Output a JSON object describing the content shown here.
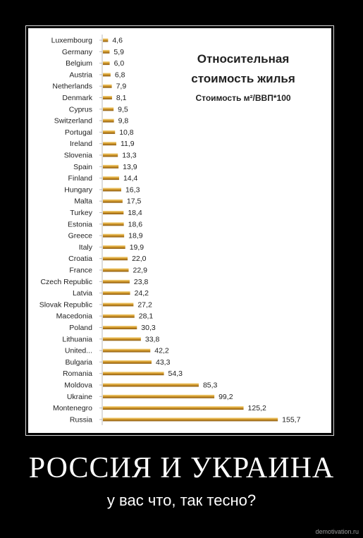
{
  "chart_data": {
    "type": "bar",
    "orientation": "horizontal",
    "title_line1": "Относительная",
    "title_line2": "стоимость жилья",
    "subtitle": "Стоимость м²/ВВП*100",
    "categories": [
      "Luxembourg",
      "Germany",
      "Belgium",
      "Austria",
      "Netherlands",
      "Denmark",
      "Cyprus",
      "Switzerland",
      "Portugal",
      "Ireland",
      "Slovenia",
      "Spain",
      "Finland",
      "Hungary",
      "Malta",
      "Turkey",
      "Estonia",
      "Greece",
      "Italy",
      "Croatia",
      "France",
      "Czech Republic",
      "Latvia",
      "Slovak Republic",
      "Macedonia",
      "Poland",
      "Lithuania",
      "United...",
      "Bulgaria",
      "Romania",
      "Moldova",
      "Ukraine",
      "Montenegro",
      "Russia"
    ],
    "values": [
      4.6,
      5.9,
      6.0,
      6.8,
      7.9,
      8.1,
      9.5,
      9.8,
      10.8,
      11.9,
      13.3,
      13.9,
      14.4,
      16.3,
      17.5,
      18.4,
      18.6,
      18.9,
      19.9,
      22.0,
      22.9,
      23.8,
      24.2,
      27.2,
      28.1,
      30.3,
      33.8,
      42.2,
      43.3,
      54.3,
      85.3,
      99.2,
      125.2,
      155.7
    ],
    "value_labels": [
      "4,6",
      "5,9",
      "6,0",
      "6,8",
      "7,9",
      "8,1",
      "9,5",
      "9,8",
      "10,8",
      "11,9",
      "13,3",
      "13,9",
      "14,4",
      "16,3",
      "17,5",
      "18,4",
      "18,6",
      "18,9",
      "19,9",
      "22,0",
      "22,9",
      "23,8",
      "24,2",
      "27,2",
      "28,1",
      "30,3",
      "33,8",
      "42,2",
      "43,3",
      "54,3",
      "85,3",
      "99,2",
      "125,2",
      "155,7"
    ],
    "bar_color": "#d49a2a",
    "xlim": [
      0,
      160
    ],
    "grid": false,
    "legend": "none"
  },
  "poster": {
    "heading": "РОССИЯ И УКРАИНА",
    "subheading": "у вас что, так тесно?",
    "watermark": "demotivation.ru"
  }
}
